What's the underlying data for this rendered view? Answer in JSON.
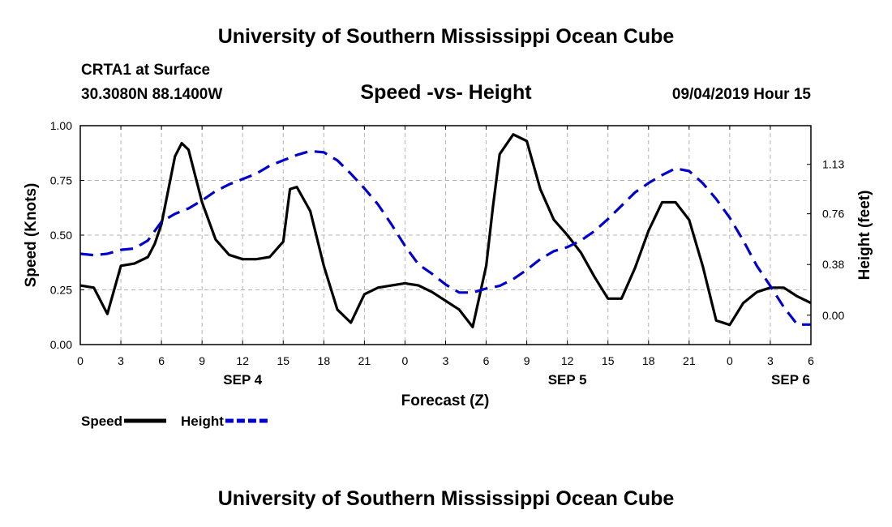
{
  "header": {
    "title": "University of Southern Mississippi Ocean Cube",
    "station": "CRTA1 at Surface",
    "coords": "30.3080N 88.1400W",
    "subtitle": "Speed -vs- Height",
    "datetime": "09/04/2019 Hour 15"
  },
  "footer": {
    "title": "University of Southern Mississippi Ocean Cube"
  },
  "chart_data": {
    "type": "line",
    "title": "Speed -vs- Height",
    "xlabel": "Forecast (Z)",
    "ylabel": "Speed (Knots)",
    "y2label": "Height (feet)",
    "x_range": [
      0,
      54
    ],
    "ylim": [
      0,
      1.0
    ],
    "y2lim": [
      -0.22,
      1.42
    ],
    "x_ticks": [
      0,
      3,
      6,
      9,
      12,
      15,
      18,
      21,
      24,
      27,
      30,
      33,
      36,
      39,
      42,
      45,
      48,
      51,
      54
    ],
    "x_tick_labels": [
      "0",
      "3",
      "6",
      "9",
      "12",
      "15",
      "18",
      "21",
      "0",
      "3",
      "6",
      "9",
      "12",
      "15",
      "18",
      "21",
      "0",
      "3",
      "6"
    ],
    "y_ticks": [
      0.0,
      0.25,
      0.5,
      0.75,
      1.0
    ],
    "y_tick_labels": [
      "0.00",
      "0.25",
      "0.50",
      "0.75",
      "1.00"
    ],
    "y2_ticks": [
      0.0,
      0.38,
      0.76,
      1.13
    ],
    "y2_tick_labels": [
      "0.00",
      "0.38",
      "0.76",
      "1.13"
    ],
    "day_labels": [
      {
        "x": 12,
        "label": "SEP 4"
      },
      {
        "x": 36,
        "label": "SEP 5"
      },
      {
        "x": 52.5,
        "label": "SEP 6"
      }
    ],
    "grid": true,
    "legend_position": "bottom-left",
    "series": [
      {
        "name": "Speed",
        "axis": "left",
        "color": "#000000",
        "style": "solid",
        "x": [
          0,
          1,
          2,
          3,
          4,
          5,
          5.5,
          6,
          7,
          7.5,
          8,
          9,
          10,
          11,
          12,
          13,
          14,
          15,
          15.5,
          16,
          17,
          18,
          19,
          20,
          21,
          22,
          23,
          24,
          25,
          26,
          27,
          28,
          29,
          30,
          30.5,
          31,
          32,
          33,
          34,
          35,
          36,
          37,
          38,
          39,
          40,
          41,
          42,
          43,
          44,
          45,
          46,
          47,
          48,
          49,
          50,
          51,
          52,
          53,
          54
        ],
        "values": [
          0.27,
          0.26,
          0.14,
          0.36,
          0.37,
          0.4,
          0.46,
          0.55,
          0.86,
          0.92,
          0.89,
          0.65,
          0.48,
          0.41,
          0.39,
          0.39,
          0.4,
          0.47,
          0.71,
          0.72,
          0.61,
          0.36,
          0.16,
          0.1,
          0.23,
          0.26,
          0.27,
          0.28,
          0.27,
          0.24,
          0.2,
          0.16,
          0.08,
          0.36,
          0.63,
          0.87,
          0.96,
          0.93,
          0.71,
          0.57,
          0.5,
          0.42,
          0.31,
          0.21,
          0.21,
          0.35,
          0.52,
          0.65,
          0.65,
          0.57,
          0.36,
          0.11,
          0.09,
          0.19,
          0.24,
          0.26,
          0.26,
          0.22,
          0.19
        ]
      },
      {
        "name": "Height",
        "axis": "right",
        "color": "#0000cc",
        "style": "dashed",
        "x": [
          0,
          1,
          2,
          3,
          4,
          5,
          6,
          7,
          8,
          9,
          10,
          11,
          12,
          13,
          14,
          15,
          16,
          17,
          18,
          19,
          20,
          21,
          22,
          23,
          24,
          25,
          26,
          27,
          28,
          29,
          30,
          31,
          32,
          33,
          34,
          35,
          36,
          37,
          38,
          39,
          40,
          41,
          42,
          43,
          44,
          45,
          46,
          47,
          48,
          49,
          50,
          51,
          52,
          53,
          54
        ],
        "values": [
          0.46,
          0.45,
          0.46,
          0.49,
          0.5,
          0.56,
          0.7,
          0.76,
          0.8,
          0.86,
          0.93,
          0.98,
          1.02,
          1.06,
          1.12,
          1.16,
          1.2,
          1.23,
          1.22,
          1.16,
          1.06,
          0.95,
          0.83,
          0.68,
          0.52,
          0.38,
          0.31,
          0.23,
          0.17,
          0.17,
          0.2,
          0.22,
          0.27,
          0.34,
          0.42,
          0.48,
          0.51,
          0.56,
          0.63,
          0.72,
          0.82,
          0.92,
          0.99,
          1.05,
          1.1,
          1.08,
          0.99,
          0.87,
          0.73,
          0.56,
          0.37,
          0.22,
          0.06,
          -0.07,
          -0.07
        ]
      }
    ]
  }
}
